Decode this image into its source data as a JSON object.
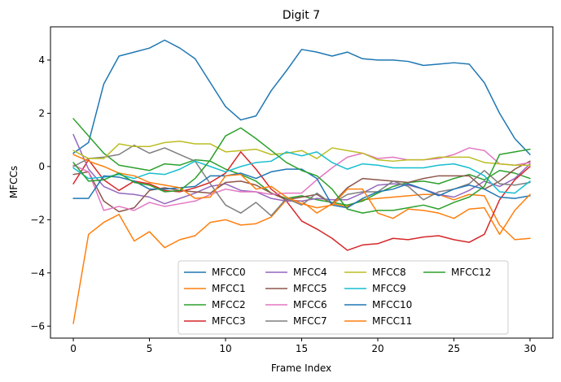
{
  "chart_data": {
    "type": "line",
    "title": "Digit 7",
    "xlabel": "Frame Index",
    "ylabel": "MFCCs",
    "xlim": [
      -1.5,
      31.5
    ],
    "ylim": [
      -6.45,
      5.25
    ],
    "xticks": [
      0,
      5,
      10,
      15,
      20,
      25,
      30
    ],
    "yticks": [
      -6,
      -4,
      -2,
      0,
      2,
      4
    ],
    "grid": false,
    "legend": {
      "position": "lower-right",
      "columns": 4
    },
    "x": [
      0,
      1,
      2,
      3,
      4,
      5,
      6,
      7,
      8,
      9,
      10,
      11,
      12,
      13,
      14,
      15,
      16,
      17,
      18,
      19,
      20,
      21,
      22,
      23,
      24,
      25,
      26,
      27,
      28,
      29,
      30
    ],
    "series": [
      {
        "name": "MFCC0",
        "color": "#1f77b4",
        "values": [
          0.5,
          0.9,
          3.1,
          4.15,
          4.3,
          4.45,
          4.75,
          4.45,
          4.05,
          3.15,
          2.25,
          1.75,
          1.9,
          2.85,
          3.6,
          4.4,
          4.3,
          4.15,
          4.3,
          4.05,
          4.0,
          4.0,
          3.95,
          3.8,
          3.85,
          3.9,
          3.85,
          3.15,
          2.0,
          1.05,
          0.45
        ]
      },
      {
        "name": "MFCC1",
        "color": "#ff7f0e",
        "values": [
          -5.9,
          -2.55,
          -2.1,
          -1.8,
          -2.8,
          -2.45,
          -3.05,
          -2.75,
          -2.6,
          -2.1,
          -2.0,
          -2.2,
          -2.15,
          -1.9,
          -1.25,
          -1.3,
          -1.75,
          -1.4,
          -1.5,
          -1.25,
          -1.2,
          -1.15,
          -1.1,
          -1.05,
          -1.05,
          -1.25,
          -1.05,
          -1.1,
          -2.2,
          -2.75,
          -2.7
        ]
      },
      {
        "name": "MFCC2",
        "color": "#2ca02c",
        "values": [
          1.8,
          1.15,
          0.5,
          0.05,
          -0.05,
          -0.15,
          0.1,
          0.05,
          0.25,
          0.2,
          -0.1,
          -0.3,
          -0.55,
          -1.0,
          -1.2,
          -1.1,
          -1.25,
          -1.35,
          -1.45,
          -1.3,
          -1.0,
          -0.75,
          -0.6,
          -0.55,
          -0.65,
          -0.45,
          -0.3,
          -0.5,
          -0.15,
          -0.25,
          -0.45
        ]
      },
      {
        "name": "MFCC3",
        "color": "#d62728",
        "values": [
          -0.65,
          0.25,
          -0.5,
          -0.9,
          -0.55,
          -0.65,
          -0.9,
          -0.95,
          -0.8,
          -0.6,
          -0.25,
          0.55,
          -0.1,
          -0.85,
          -1.3,
          -2.05,
          -2.35,
          -2.7,
          -3.15,
          -2.95,
          -2.9,
          -2.7,
          -2.75,
          -2.65,
          -2.6,
          -2.75,
          -2.85,
          -2.55,
          -1.25,
          -0.5,
          0.0
        ]
      },
      {
        "name": "MFCC4",
        "color": "#9467bd",
        "values": [
          1.2,
          -0.1,
          -0.75,
          -1.0,
          -1.05,
          -1.15,
          -1.4,
          -1.2,
          -1.0,
          -0.75,
          -0.65,
          -0.9,
          -0.95,
          -1.2,
          -1.3,
          -1.3,
          -1.2,
          -1.25,
          -1.25,
          -1.0,
          -0.7,
          -0.65,
          -0.7,
          -0.85,
          -1.05,
          -1.15,
          -0.9,
          -0.55,
          -0.75,
          -0.45,
          0.1
        ]
      },
      {
        "name": "MFCC5",
        "color": "#8c564b",
        "values": [
          -0.3,
          -0.2,
          -1.3,
          -1.7,
          -1.55,
          -0.9,
          -0.8,
          -0.9,
          -0.95,
          -1.0,
          -0.6,
          -0.55,
          -0.7,
          -1.0,
          -1.25,
          -1.15,
          -1.05,
          -1.4,
          -0.8,
          -0.45,
          -0.5,
          -0.55,
          -0.6,
          -0.45,
          -0.35,
          -0.35,
          -0.35,
          -0.85,
          -0.55,
          -0.1,
          0.2
        ]
      },
      {
        "name": "MFCC6",
        "color": "#e377c2",
        "values": [
          0.05,
          -0.2,
          -1.65,
          -1.5,
          -1.65,
          -1.35,
          -1.5,
          -1.4,
          -1.3,
          -1.05,
          -0.85,
          -0.95,
          -0.95,
          -1.05,
          -1.0,
          -1.0,
          -0.5,
          -0.05,
          0.35,
          0.5,
          0.3,
          0.35,
          0.25,
          0.25,
          0.3,
          0.45,
          0.7,
          0.6,
          0.1,
          0.05,
          0.15
        ]
      },
      {
        "name": "MFCC7",
        "color": "#7f7f7f",
        "values": [
          0.0,
          0.3,
          0.35,
          0.45,
          0.8,
          0.5,
          0.7,
          0.45,
          0.2,
          -0.65,
          -1.45,
          -1.75,
          -1.35,
          -1.85,
          -1.2,
          -1.45,
          -1.0,
          -1.4,
          -1.05,
          -0.95,
          -0.95,
          -0.55,
          -0.75,
          -1.25,
          -0.95,
          -0.85,
          -0.65,
          -0.15,
          -0.65,
          -0.7,
          -0.6
        ]
      },
      {
        "name": "MFCC8",
        "color": "#bcbd22",
        "values": [
          0.6,
          0.3,
          0.3,
          0.85,
          0.75,
          0.75,
          0.9,
          0.95,
          0.85,
          0.85,
          0.55,
          0.6,
          0.65,
          0.45,
          0.5,
          0.6,
          0.3,
          0.7,
          0.6,
          0.5,
          0.25,
          0.2,
          0.25,
          0.25,
          0.35,
          0.35,
          0.35,
          0.15,
          0.1,
          0.05,
          0.05
        ]
      },
      {
        "name": "MFCC9",
        "color": "#17becf",
        "values": [
          -0.05,
          -0.45,
          -0.4,
          -0.3,
          -0.45,
          -0.25,
          -0.3,
          -0.1,
          0.2,
          0.0,
          -0.2,
          0.0,
          0.15,
          0.2,
          0.55,
          0.4,
          0.55,
          0.15,
          -0.1,
          0.1,
          0.05,
          -0.05,
          -0.05,
          -0.05,
          0.05,
          0.1,
          -0.05,
          -0.35,
          -0.95,
          -1.0,
          -0.55
        ]
      },
      {
        "name": "MFCC10",
        "color": "#1f77b4",
        "values": [
          -1.2,
          -1.2,
          -0.35,
          -0.4,
          -0.55,
          -0.85,
          -0.85,
          -0.8,
          -0.75,
          -0.35,
          -0.35,
          -0.25,
          -0.45,
          -0.2,
          -0.1,
          -0.1,
          -0.45,
          -1.45,
          -1.55,
          -1.2,
          -0.95,
          -0.85,
          -0.65,
          -0.85,
          -1.1,
          -0.85,
          -0.7,
          -0.85,
          -1.15,
          -1.2,
          -1.1
        ]
      },
      {
        "name": "MFCC11",
        "color": "#ff7f0e",
        "values": [
          0.45,
          0.2,
          0.0,
          -0.25,
          -0.35,
          -0.6,
          -0.7,
          -0.8,
          -1.2,
          -1.15,
          -0.35,
          -0.3,
          -0.85,
          -0.75,
          -1.15,
          -1.4,
          -1.55,
          -1.45,
          -0.85,
          -0.85,
          -1.75,
          -1.95,
          -1.6,
          -1.65,
          -1.75,
          -1.95,
          -1.6,
          -1.55,
          -2.55,
          -1.65,
          -1.05
        ]
      },
      {
        "name": "MFCC12",
        "color": "#2ca02c",
        "values": [
          0.15,
          -0.55,
          -0.5,
          -0.25,
          -0.6,
          -0.7,
          -0.95,
          -0.9,
          -0.45,
          0.25,
          1.15,
          1.45,
          1.05,
          0.6,
          0.15,
          -0.15,
          -0.35,
          -0.85,
          -1.6,
          -1.75,
          -1.65,
          -1.65,
          -1.55,
          -1.45,
          -1.6,
          -1.35,
          -1.15,
          -0.75,
          0.45,
          0.55,
          0.65
        ]
      }
    ]
  }
}
